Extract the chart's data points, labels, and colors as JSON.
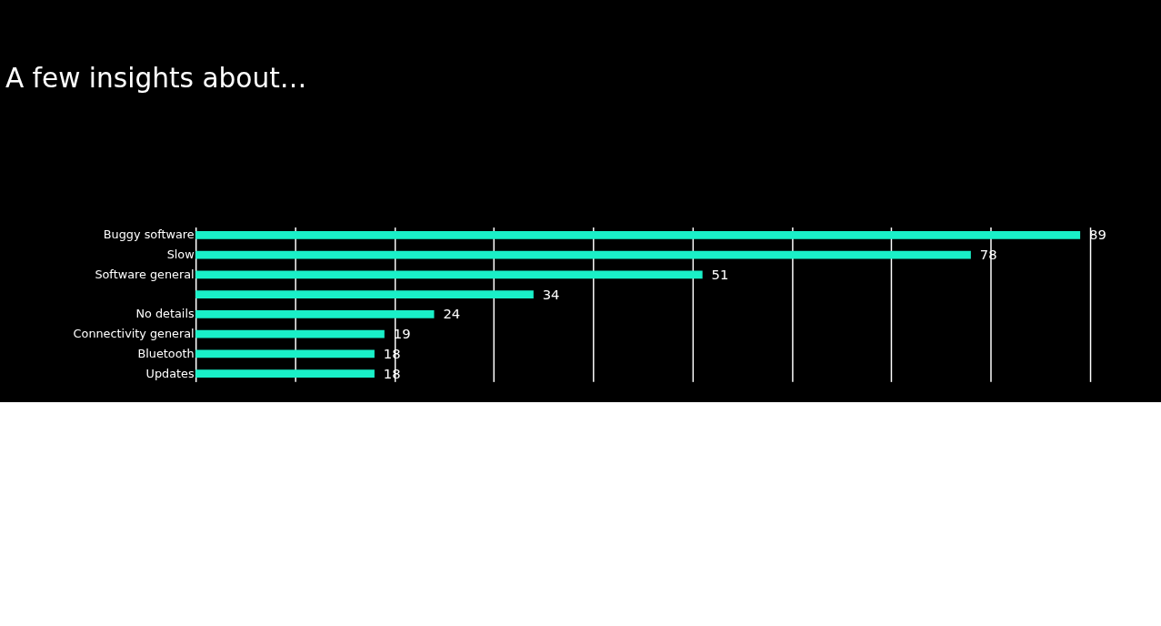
{
  "chart_data": {
    "type": "bar",
    "orientation": "horizontal",
    "title": "A few insights about…",
    "categories": [
      "Buggy software",
      "Slow",
      "Software general",
      null,
      "No details",
      "Connectivity general",
      "Bluetooth",
      "Updates"
    ],
    "values": [
      89,
      78,
      51,
      34,
      24,
      19,
      18,
      18
    ],
    "color": "#19f0c8",
    "xlim": [
      0,
      90
    ],
    "xticks": [
      {
        "value": 0,
        "label": null
      },
      {
        "value": 10,
        "label": null
      },
      {
        "value": 20,
        "label": null
      },
      {
        "value": 30,
        "label": null
      },
      {
        "value": 40,
        "label": null
      },
      {
        "value": 50,
        "label": null
      },
      {
        "value": 60,
        "label": null
      },
      {
        "value": 70,
        "label": null
      },
      {
        "value": 80,
        "label": null
      },
      {
        "value": 90,
        "label": null
      }
    ],
    "tick_labels": "y",
    "grid": "x",
    "data_labels": true
  }
}
